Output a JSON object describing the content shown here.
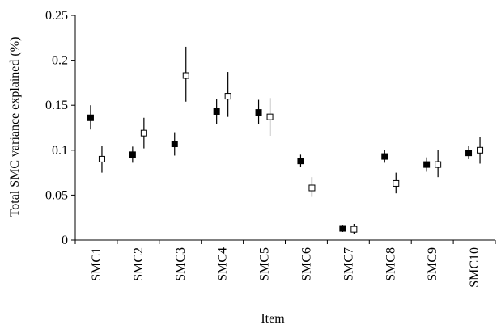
{
  "chart_data": {
    "type": "scatter",
    "title": "",
    "xlabel": "Item",
    "ylabel": "Total SMC variance explained (%)",
    "ylim": [
      0,
      0.25
    ],
    "yticks": [
      "0",
      "0.05",
      "0.1",
      "0.15",
      "0.2",
      "0.25"
    ],
    "ytick_values": [
      0,
      0.05,
      0.1,
      0.15,
      0.2,
      0.25
    ],
    "categories": [
      "SMC1",
      "SMC2",
      "SMC3",
      "SMC4",
      "SMC5",
      "SMC6",
      "SMC7",
      "SMC8",
      "SMC9",
      "SMC10"
    ],
    "grid": false,
    "legend": "none",
    "series": [
      {
        "marker": "filled-square",
        "color": "#000000",
        "values": [
          0.136,
          0.095,
          0.107,
          0.143,
          0.142,
          0.088,
          0.013,
          0.093,
          0.084,
          0.097
        ],
        "lower": [
          0.123,
          0.086,
          0.094,
          0.129,
          0.129,
          0.081,
          0.009,
          0.086,
          0.076,
          0.09
        ],
        "upper": [
          0.15,
          0.104,
          0.12,
          0.157,
          0.156,
          0.095,
          0.017,
          0.1,
          0.092,
          0.105
        ]
      },
      {
        "marker": "open-square",
        "color": "#000000",
        "values": [
          0.09,
          0.119,
          0.183,
          0.16,
          0.137,
          0.058,
          0.012,
          0.063,
          0.084,
          0.1
        ],
        "lower": [
          0.075,
          0.102,
          0.154,
          0.137,
          0.116,
          0.048,
          0.007,
          0.052,
          0.07,
          0.085
        ],
        "upper": [
          0.105,
          0.136,
          0.215,
          0.187,
          0.158,
          0.07,
          0.018,
          0.075,
          0.1,
          0.115
        ]
      }
    ]
  }
}
